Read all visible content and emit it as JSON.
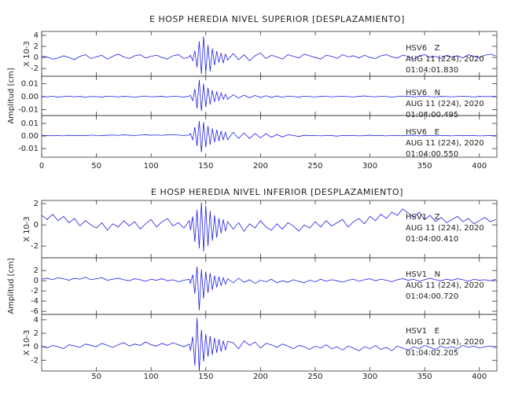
{
  "chart_data": [
    {
      "type": "line",
      "title": "E HOSP HEREDIA NIVEL SUPERIOR [DESPLAZAMIENTO]",
      "ylabel": "Amplitud [cm]",
      "x": [
        0,
        5,
        10,
        15,
        20,
        25,
        30,
        35,
        40,
        45,
        50,
        55,
        60,
        65,
        70,
        75,
        80,
        85,
        90,
        95,
        100,
        105,
        110,
        115,
        120,
        125,
        130,
        135,
        136,
        138,
        140,
        142,
        144,
        146,
        148,
        150,
        152,
        154,
        156,
        158,
        160,
        162,
        164,
        166,
        168,
        170,
        175,
        180,
        185,
        190,
        195,
        200,
        205,
        210,
        215,
        220,
        225,
        230,
        235,
        240,
        245,
        250,
        255,
        260,
        265,
        270,
        275,
        280,
        285,
        290,
        295,
        300,
        305,
        310,
        315,
        320,
        325,
        330,
        335,
        340,
        345,
        350,
        355,
        360,
        365,
        370,
        375,
        380,
        385,
        390,
        395,
        400,
        405,
        410,
        415
      ],
      "xlim": [
        0,
        416
      ],
      "xticks": [
        0,
        50,
        100,
        150,
        200,
        250,
        300,
        350,
        400
      ],
      "panels": [
        {
          "exponent_label": "X 10-3",
          "ylim": [
            -3.4,
            4.7
          ],
          "yticks": [
            -2,
            0,
            2,
            4
          ],
          "color": "#1f1fe6",
          "station": "HSV6   Z",
          "date": "AUG 11 (224), 2020",
          "time": "01:04:01.830",
          "values": [
            0.2,
            0.1,
            -0.3,
            -0.1,
            0.3,
            0.0,
            -0.4,
            0.2,
            0.5,
            -0.2,
            0.1,
            0.4,
            -0.3,
            0.2,
            0.6,
            0.1,
            -0.2,
            0.3,
            0.5,
            -0.1,
            0.2,
            0.4,
            0.0,
            -0.3,
            0.3,
            0.5,
            -0.2,
            0.1,
            0.4,
            -0.6,
            1.2,
            -1.8,
            2.9,
            -3.0,
            3.8,
            -2.7,
            2.2,
            -2.5,
            1.6,
            -1.4,
            1.1,
            -0.9,
            0.8,
            -1.0,
            0.6,
            -0.5,
            0.7,
            -0.4,
            0.5,
            -0.6,
            0.3,
            0.8,
            -0.2,
            0.4,
            0.1,
            -0.3,
            0.5,
            0.2,
            -0.1,
            0.6,
            0.3,
            0.0,
            -0.3,
            0.4,
            0.2,
            -0.2,
            0.5,
            0.1,
            0.3,
            -0.1,
            0.4,
            0.0,
            -0.2,
            0.3,
            0.5,
            0.1,
            -0.1,
            0.4,
            0.2,
            -0.3,
            0.3,
            0.5,
            0.0,
            0.2,
            -0.2,
            0.4,
            0.1,
            0.3,
            -0.1,
            0.5,
            0.2,
            0.0,
            0.4,
            0.6,
            0.3
          ]
        },
        {
          "ylim": [
            -0.0145,
            0.0158
          ],
          "yticks": [
            -0.01,
            {
              "value": 0,
              "label": "0.00"
            },
            0.01
          ],
          "color": "#1f1fe6",
          "station": "HSV6   N",
          "date": "AUG 11 (224), 2020",
          "time": "01:04:00.495",
          "values": [
            0.0003,
            -0.0002,
            0.0004,
            -0.0003,
            0.0002,
            0.0005,
            -0.0001,
            0.0003,
            -0.0004,
            0.0002,
            0.0001,
            -0.0003,
            0.0004,
            0.0002,
            -0.0002,
            0.0003,
            0.0001,
            -0.0004,
            0.0002,
            0.0005,
            -0.0001,
            0.0002,
            0.0003,
            -0.0002,
            0.0004,
            0.0001,
            -0.0003,
            0.0006,
            0.001,
            -0.003,
            0.006,
            -0.009,
            0.013,
            -0.011,
            0.01,
            -0.008,
            0.007,
            -0.006,
            0.005,
            -0.004,
            0.004,
            -0.003,
            0.003,
            -0.002,
            0.002,
            -0.002,
            0.0015,
            -0.001,
            0.0012,
            -0.0008,
            0.001,
            -0.0006,
            0.0008,
            -0.0005,
            0.0006,
            -0.0004,
            0.0005,
            0.0002,
            -0.0003,
            0.0004,
            0.0001,
            -0.0002,
            0.0003,
            0.0005,
            -0.0001,
            0.0002,
            0.0004,
            0.0001,
            -0.0002,
            0.0003,
            0.0006,
            0.0002,
            -0.0001,
            0.0004,
            0.0001,
            -0.0003,
            0.0002,
            0.0005,
            0.0003,
            -0.0001,
            0.0002,
            0.0004,
            0.0001,
            -0.0002,
            0.0003,
            0.0001,
            -0.0001,
            0.0002,
            0.0004,
            0.0002,
            -0.0002,
            0.0003,
            0.0001,
            0.0002,
            0.0003
          ]
        },
        {
          "ylim": [
            -0.0169,
            0.0163
          ],
          "yticks": [
            -0.01,
            {
              "value": 0,
              "label": "0.00"
            },
            0.01
          ],
          "color": "#1f1fe6",
          "station": "HSV6   E",
          "date": "AUG 11 (224), 2020",
          "time": "01:04:00.550",
          "values": [
            0.0005,
            0.0003,
            0.0002,
            0.0004,
            0.0001,
            0.0006,
            0.0003,
            0.0005,
            0.0002,
            0.0007,
            0.0004,
            0.0003,
            0.0006,
            0.0008,
            0.0005,
            0.0009,
            0.0006,
            0.0004,
            0.0007,
            0.001,
            0.0006,
            0.0008,
            0.0005,
            0.0009,
            0.0011,
            0.0007,
            0.0004,
            0.0008,
            0.002,
            -0.003,
            0.007,
            -0.008,
            0.012,
            -0.013,
            0.011,
            -0.009,
            0.008,
            -0.007,
            0.006,
            -0.005,
            0.005,
            -0.004,
            0.004,
            -0.003,
            0.003,
            -0.003,
            0.003,
            -0.002,
            0.0025,
            -0.002,
            0.002,
            -0.0015,
            0.0018,
            -0.001,
            0.0012,
            -0.0008,
            0.001,
            0.0004,
            -0.0004,
            0.0006,
            0.0002,
            0.0004,
            0.0001,
            0.0005,
            0.0003,
            -0.0001,
            0.0004,
            0.0002,
            0.0005,
            0.0001,
            0.0003,
            0.0006,
            0.0002,
            0.0004,
            0.0001,
            0.0005,
            0.0003,
            0.0002,
            0.0006,
            0.0004,
            0.0001,
            0.0003,
            0.0005,
            0.0002,
            0.0004,
            0.0003,
            0.0001,
            0.0005,
            0.0002,
            0.0004,
            0.0003,
            0.0001,
            0.0002,
            0.0004,
            0.0003
          ]
        }
      ]
    },
    {
      "type": "line",
      "title": "E HOSP HEREDIA NIVEL INFERIOR [DESPLAZAMIENTO]",
      "ylabel": "Amplitud [cm]",
      "x": [
        0,
        5,
        10,
        15,
        20,
        25,
        30,
        35,
        40,
        45,
        50,
        55,
        60,
        65,
        70,
        75,
        80,
        85,
        90,
        95,
        100,
        105,
        110,
        115,
        120,
        125,
        130,
        135,
        136,
        138,
        140,
        142,
        144,
        146,
        148,
        150,
        152,
        154,
        156,
        158,
        160,
        162,
        164,
        166,
        168,
        170,
        175,
        180,
        185,
        190,
        195,
        200,
        205,
        210,
        215,
        220,
        225,
        230,
        235,
        240,
        245,
        250,
        255,
        260,
        265,
        270,
        275,
        280,
        285,
        290,
        295,
        300,
        305,
        310,
        315,
        320,
        325,
        330,
        335,
        340,
        345,
        350,
        355,
        360,
        365,
        370,
        375,
        380,
        385,
        390,
        395,
        400,
        405,
        410,
        415
      ],
      "xlim": [
        0,
        416
      ],
      "xticks": [
        50,
        100,
        150,
        200,
        250,
        300,
        350,
        400
      ],
      "panels": [
        {
          "exponent_label": "X 10-3",
          "ylim": [
            -3.1,
            2.3
          ],
          "yticks": [
            -2,
            0,
            2
          ],
          "color": "#1f1fe6",
          "station": "HSV1   Z",
          "date": "AUG 11 (224), 2020",
          "time": "01:04:00.410",
          "values": [
            0.9,
            0.5,
            1.0,
            0.4,
            0.8,
            0.2,
            0.6,
            -0.1,
            0.4,
            0.0,
            -0.3,
            0.2,
            -0.5,
            0.1,
            -0.2,
            0.4,
            -0.1,
            0.3,
            -0.4,
            0.1,
            0.5,
            -0.2,
            0.3,
            0.6,
            -0.1,
            0.2,
            -0.3,
            0.4,
            -0.5,
            0.8,
            -1.6,
            1.4,
            -2.2,
            2.1,
            -2.5,
            1.8,
            -2.0,
            1.3,
            -1.5,
            0.9,
            -1.2,
            0.6,
            -0.8,
            0.5,
            -0.6,
            0.3,
            -0.4,
            0.2,
            -0.6,
            0.1,
            -0.3,
            0.4,
            -0.2,
            -0.5,
            0.1,
            -0.4,
            0.2,
            -0.1,
            -0.6,
            0.0,
            -0.3,
            0.3,
            -0.2,
            0.4,
            -0.1,
            0.2,
            0.5,
            -0.2,
            0.3,
            0.6,
            0.1,
            0.8,
            0.4,
            1.0,
            0.6,
            1.2,
            0.9,
            1.5,
            1.1,
            0.7,
            1.2,
            0.5,
            0.9,
            0.3,
            0.7,
            0.2,
            0.5,
            0.8,
            0.3,
            0.6,
            0.1,
            0.4,
            0.7,
            0.3,
            0.5
          ]
        },
        {
          "ylim": [
            -6.6,
            4.5
          ],
          "yticks": [
            -6,
            -4,
            -2,
            0,
            2
          ],
          "color": "#1f1fe6",
          "station": "HSV1   N",
          "date": "AUG 11 (224), 2020",
          "time": "01:04:00.720",
          "values": [
            0.3,
            0.5,
            0.2,
            0.6,
            0.4,
            0.1,
            0.5,
            0.3,
            0.7,
            0.2,
            0.4,
            0.6,
            0.1,
            0.3,
            0.5,
            0.2,
            0.0,
            0.4,
            0.2,
            -0.1,
            0.3,
            0.1,
            0.4,
            0.0,
            0.2,
            -0.2,
            0.1,
            0.3,
            -0.5,
            1.2,
            -2.5,
            2.8,
            -5.8,
            2.2,
            -3.5,
            1.8,
            -2.4,
            1.5,
            -1.8,
            1.0,
            -1.3,
            0.8,
            -1.0,
            0.6,
            -0.7,
            0.4,
            -0.4,
            0.5,
            -0.3,
            0.2,
            -0.5,
            0.1,
            -0.2,
            0.3,
            -0.4,
            0.0,
            -0.3,
            0.2,
            -0.1,
            -0.4,
            0.1,
            -0.2,
            0.3,
            -0.1,
            0.2,
            0.0,
            -0.3,
            0.1,
            0.3,
            -0.1,
            0.2,
            0.4,
            0.0,
            0.3,
            0.1,
            -0.2,
            0.2,
            0.4,
            0.1,
            0.3,
            -0.1,
            0.2,
            0.5,
            0.2,
            0.0,
            0.3,
            0.1,
            0.4,
            0.2,
            -0.1,
            0.3,
            0.1,
            0.2,
            0.0,
            0.3
          ]
        },
        {
          "exponent_label": "X 10-3",
          "ylim": [
            -3.6,
            4.8
          ],
          "yticks": [
            -2,
            0,
            2,
            4
          ],
          "color": "#1f1fe6",
          "station": "HSV1   E",
          "date": "AUG 11 (224), 2020",
          "time": "01:04:02.205",
          "values": [
            0.1,
            -0.2,
            0.2,
            0.0,
            -0.3,
            0.3,
            0.1,
            -0.1,
            0.4,
            0.2,
            0.0,
            0.5,
            0.2,
            -0.1,
            0.3,
            0.6,
            0.1,
            0.4,
            0.2,
            0.7,
            0.3,
            0.1,
            0.5,
            0.2,
            0.6,
            0.3,
            0.0,
            0.4,
            -0.6,
            1.5,
            -2.8,
            4.3,
            -3.6,
            2.5,
            -2.2,
            1.9,
            -1.5,
            1.6,
            -1.2,
            1.3,
            -0.9,
            1.1,
            -0.7,
            0.9,
            -0.5,
            0.8,
            0.6,
            -0.3,
            0.9,
            0.2,
            0.7,
            -0.2,
            0.5,
            0.3,
            -0.1,
            0.4,
            0.1,
            -0.3,
            0.2,
            0.0,
            -0.4,
            0.1,
            -0.2,
            0.3,
            -0.3,
            0.0,
            -0.5,
            0.1,
            -0.2,
            -0.6,
            0.0,
            -0.3,
            0.2,
            -0.4,
            -0.1,
            -0.6,
            0.1,
            -0.2,
            -0.5,
            0.0,
            -0.3,
            0.2,
            -0.1,
            -0.4,
            0.1,
            -0.2,
            0.0,
            -0.3,
            0.2,
            -0.1,
            0.1,
            -0.2,
            0.0,
            0.1,
            -0.1
          ]
        }
      ]
    }
  ]
}
